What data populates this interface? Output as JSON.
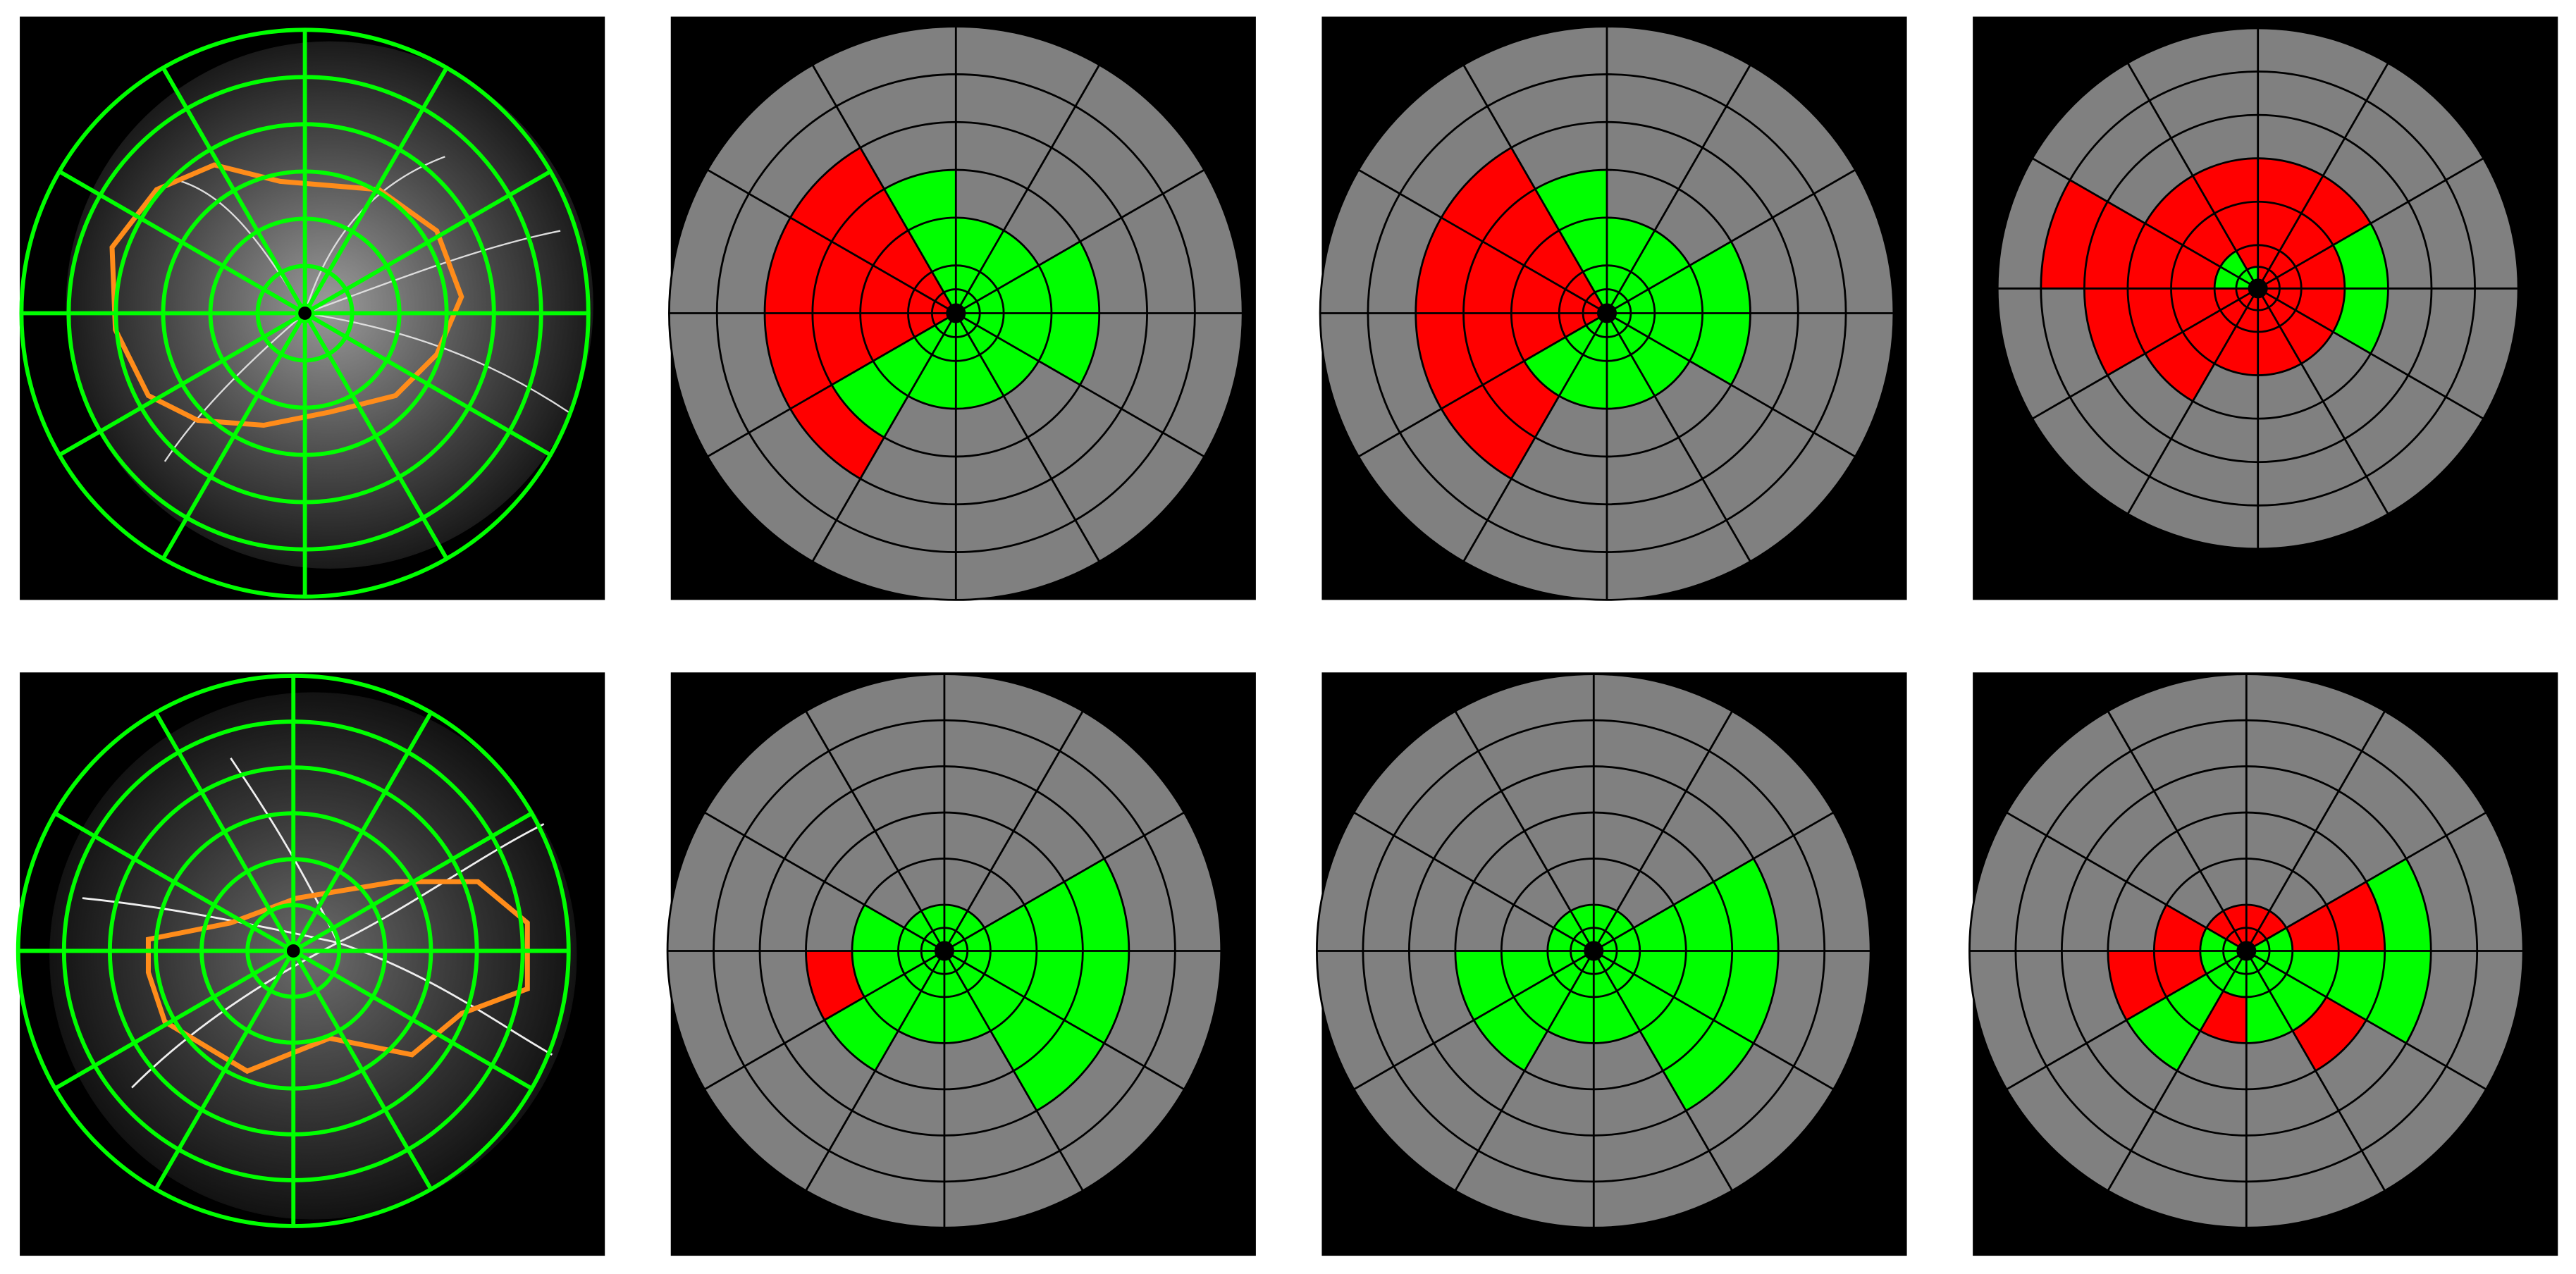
{
  "palette": {
    "g": "#00ff00",
    "r": "#ff0000"
  },
  "panels": [
    {
      "sectors": [
        "gggg",
        "ggg",
        "ggg",
        "gggg",
        "rrrrr",
        "rrrrr",
        "rrrrr",
        "ggggr",
        "ggg",
        "ggg",
        "ggg",
        "gggg"
      ]
    },
    {
      "sectors": [
        "gggg",
        "ggg",
        "ggg",
        "gggg",
        "rrrrr",
        "rrrrr",
        "rrrrr",
        "gggrr",
        "ggg",
        "ggg",
        "ggg",
        "gggg"
      ]
    },
    {
      "sectors": [
        "rrrg",
        "rrrr",
        "rrrr",
        "grrr",
        "ggrr",
        "ggrrrr",
        "rrrrr",
        "rrrr",
        "rrr",
        "rrr",
        "rrr",
        "rrrg"
      ]
    },
    {
      "sectors": [
        "ggggg",
        "gg",
        "gg",
        "gg",
        "gg",
        "ggg",
        "gggr",
        "gggg",
        "ggg",
        "ggg",
        "ggggg",
        "ggggg"
      ]
    },
    {
      "sectors": [
        "ggggg",
        "gg",
        "gg",
        "gg",
        "gg",
        "gg",
        "gggg",
        "gggg",
        "ggg",
        "ggg",
        "ggggg",
        "ggggg"
      ]
    },
    {
      "sectors": [
        "ggrrg",
        "rr",
        "rr",
        "rr",
        "rr",
        "ggr",
        "ggrr",
        "gggg",
        "ggr",
        "ggg",
        "gggr",
        "ggggg"
      ]
    }
  ]
}
